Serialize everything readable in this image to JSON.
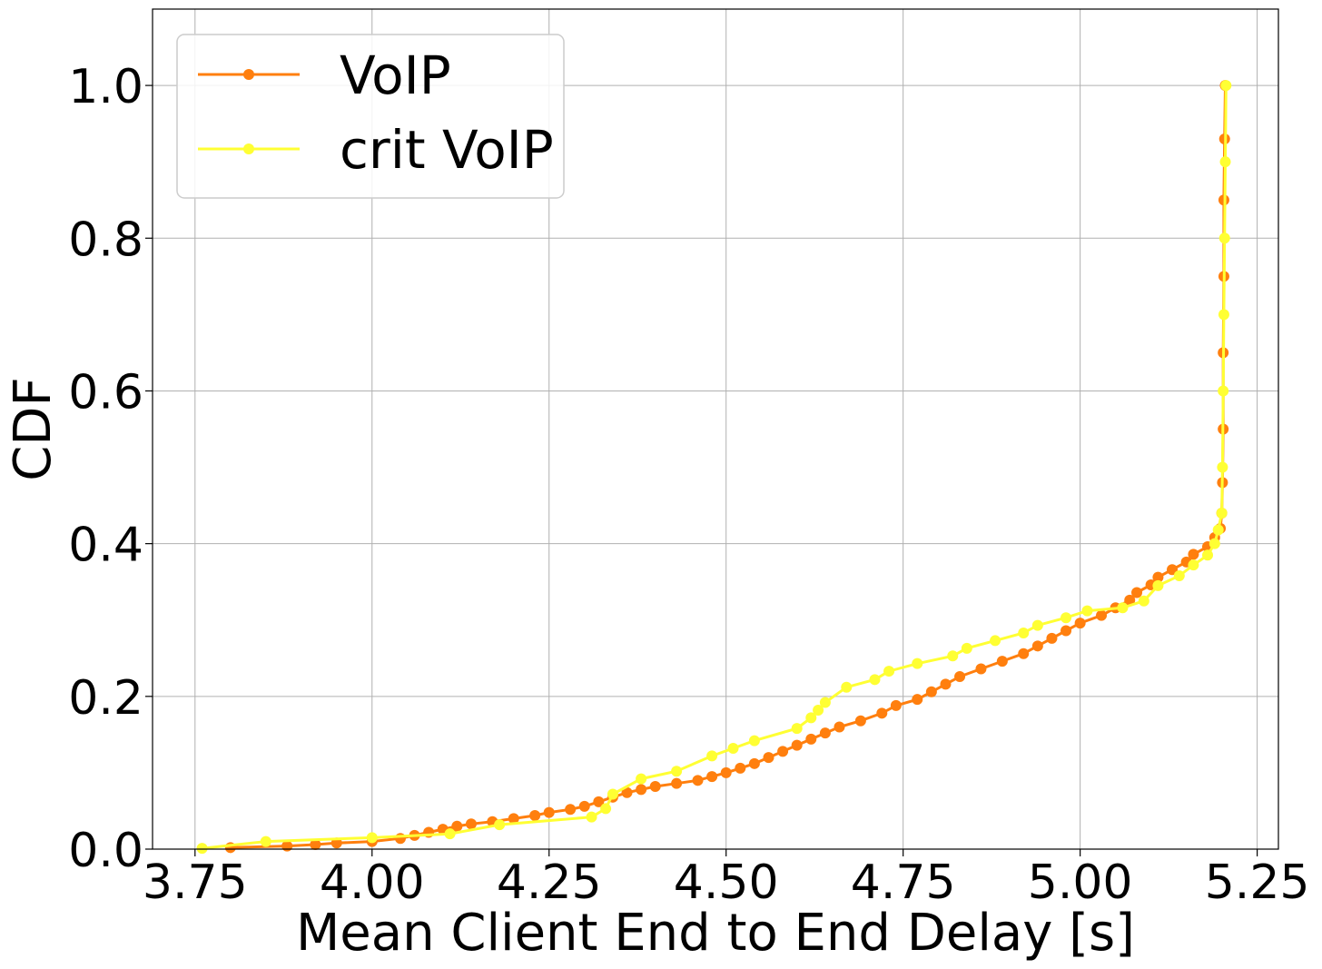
{
  "colors": {
    "voip": "#ff7f0e",
    "crit_voip": "#ffff33",
    "grid": "#b0b0b0",
    "axes": "#000000"
  },
  "chart_data": {
    "type": "line",
    "title": "",
    "xlabel": "Mean Client End to End Delay [s]",
    "ylabel": "CDF",
    "xlim": [
      3.69,
      5.28
    ],
    "ylim": [
      0.0,
      1.1
    ],
    "xticks": [
      3.75,
      4.0,
      4.25,
      4.5,
      4.75,
      5.0,
      5.25
    ],
    "xtick_labels": [
      "3.75",
      "4.00",
      "4.25",
      "4.50",
      "4.75",
      "5.00",
      "5.25"
    ],
    "yticks": [
      0.0,
      0.2,
      0.4,
      0.6,
      0.8,
      1.0
    ],
    "ytick_labels": [
      "0.0",
      "0.2",
      "0.4",
      "0.6",
      "0.8",
      "1.0"
    ],
    "grid": true,
    "legend_position": "top-left",
    "series": [
      {
        "name": "VoIP",
        "color": "#ff7f0e",
        "marker": "circle",
        "points": [
          [
            3.8,
            0.002
          ],
          [
            3.88,
            0.004
          ],
          [
            3.92,
            0.006
          ],
          [
            3.95,
            0.008
          ],
          [
            4.0,
            0.01
          ],
          [
            4.04,
            0.014
          ],
          [
            4.06,
            0.018
          ],
          [
            4.08,
            0.022
          ],
          [
            4.1,
            0.026
          ],
          [
            4.12,
            0.03
          ],
          [
            4.14,
            0.033
          ],
          [
            4.17,
            0.036
          ],
          [
            4.2,
            0.04
          ],
          [
            4.23,
            0.044
          ],
          [
            4.25,
            0.048
          ],
          [
            4.28,
            0.052
          ],
          [
            4.3,
            0.056
          ],
          [
            4.32,
            0.062
          ],
          [
            4.34,
            0.068
          ],
          [
            4.36,
            0.074
          ],
          [
            4.38,
            0.078
          ],
          [
            4.4,
            0.082
          ],
          [
            4.43,
            0.086
          ],
          [
            4.46,
            0.09
          ],
          [
            4.48,
            0.095
          ],
          [
            4.5,
            0.1
          ],
          [
            4.52,
            0.106
          ],
          [
            4.54,
            0.112
          ],
          [
            4.56,
            0.12
          ],
          [
            4.58,
            0.128
          ],
          [
            4.6,
            0.136
          ],
          [
            4.62,
            0.144
          ],
          [
            4.64,
            0.152
          ],
          [
            4.66,
            0.16
          ],
          [
            4.69,
            0.168
          ],
          [
            4.72,
            0.178
          ],
          [
            4.74,
            0.188
          ],
          [
            4.77,
            0.196
          ],
          [
            4.79,
            0.206
          ],
          [
            4.81,
            0.216
          ],
          [
            4.83,
            0.226
          ],
          [
            4.86,
            0.236
          ],
          [
            4.89,
            0.246
          ],
          [
            4.92,
            0.256
          ],
          [
            4.94,
            0.266
          ],
          [
            4.96,
            0.276
          ],
          [
            4.98,
            0.286
          ],
          [
            5.0,
            0.296
          ],
          [
            5.03,
            0.306
          ],
          [
            5.05,
            0.316
          ],
          [
            5.07,
            0.326
          ],
          [
            5.08,
            0.336
          ],
          [
            5.1,
            0.346
          ],
          [
            5.11,
            0.356
          ],
          [
            5.13,
            0.366
          ],
          [
            5.15,
            0.376
          ],
          [
            5.16,
            0.386
          ],
          [
            5.18,
            0.396
          ],
          [
            5.19,
            0.408
          ],
          [
            5.198,
            0.42
          ],
          [
            5.2,
            0.44
          ],
          [
            5.201,
            0.48
          ],
          [
            5.202,
            0.55
          ],
          [
            5.202,
            0.65
          ],
          [
            5.203,
            0.75
          ],
          [
            5.203,
            0.85
          ],
          [
            5.204,
            0.93
          ],
          [
            5.205,
            1.0
          ]
        ]
      },
      {
        "name": "crit VoIP",
        "color": "#ffff33",
        "marker": "circle",
        "points": [
          [
            3.76,
            0.001
          ],
          [
            3.85,
            0.01
          ],
          [
            4.0,
            0.015
          ],
          [
            4.11,
            0.02
          ],
          [
            4.18,
            0.032
          ],
          [
            4.31,
            0.042
          ],
          [
            4.33,
            0.053
          ],
          [
            4.34,
            0.072
          ],
          [
            4.38,
            0.092
          ],
          [
            4.43,
            0.102
          ],
          [
            4.48,
            0.122
          ],
          [
            4.51,
            0.132
          ],
          [
            4.54,
            0.142
          ],
          [
            4.6,
            0.158
          ],
          [
            4.62,
            0.172
          ],
          [
            4.63,
            0.182
          ],
          [
            4.64,
            0.192
          ],
          [
            4.67,
            0.212
          ],
          [
            4.71,
            0.222
          ],
          [
            4.73,
            0.233
          ],
          [
            4.77,
            0.243
          ],
          [
            4.82,
            0.253
          ],
          [
            4.84,
            0.263
          ],
          [
            4.88,
            0.273
          ],
          [
            4.92,
            0.283
          ],
          [
            4.94,
            0.293
          ],
          [
            4.98,
            0.303
          ],
          [
            5.01,
            0.312
          ],
          [
            5.06,
            0.316
          ],
          [
            5.09,
            0.325
          ],
          [
            5.11,
            0.345
          ],
          [
            5.14,
            0.358
          ],
          [
            5.16,
            0.372
          ],
          [
            5.18,
            0.385
          ],
          [
            5.19,
            0.4
          ],
          [
            5.195,
            0.418
          ],
          [
            5.2,
            0.44
          ],
          [
            5.201,
            0.5
          ],
          [
            5.202,
            0.6
          ],
          [
            5.203,
            0.7
          ],
          [
            5.204,
            0.8
          ],
          [
            5.205,
            0.9
          ],
          [
            5.206,
            1.0
          ]
        ]
      }
    ]
  }
}
